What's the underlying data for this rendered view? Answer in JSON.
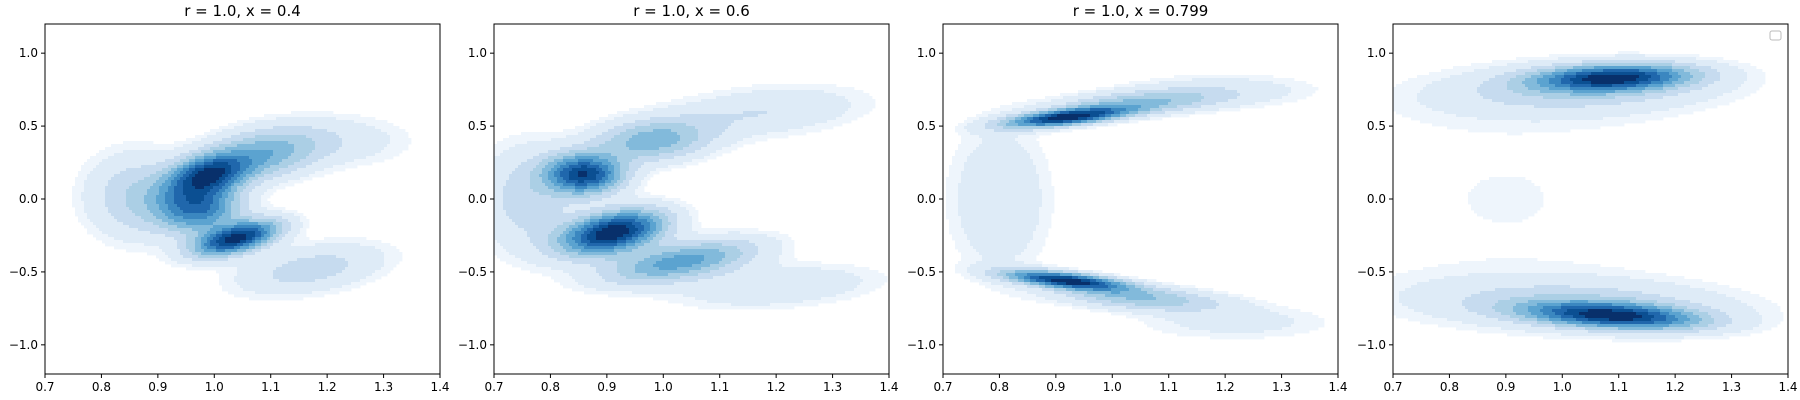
{
  "chart_data": [
    {
      "type": "contour",
      "title": "r = 1.0, x = 0.4",
      "xlim": [
        0.7,
        1.4
      ],
      "ylim": [
        -1.2,
        1.2
      ],
      "x_ticks": [
        "0.7",
        "0.8",
        "0.9",
        "1.0",
        "1.1",
        "1.2",
        "1.3",
        "1.4"
      ],
      "y_ticks": [
        "1.0",
        "0.5",
        "0.0",
        "−0.5",
        "−1.0"
      ],
      "grid": false,
      "colormap": "Blues",
      "levels": 10,
      "density_peaks": [
        {
          "x": 0.99,
          "y": 0.17,
          "sx": 0.045,
          "sy": 0.09,
          "rho": 0.3,
          "w": 0.8
        },
        {
          "x": 1.04,
          "y": -0.27,
          "sx": 0.05,
          "sy": 0.08,
          "rho": 0.55,
          "w": 1.0
        },
        {
          "x": 0.97,
          "y": -0.05,
          "sx": 0.05,
          "sy": 0.12,
          "rho": 0.0,
          "w": 0.75
        },
        {
          "x": 1.08,
          "y": 0.3,
          "sx": 0.07,
          "sy": 0.12,
          "rho": 0.3,
          "w": 0.45
        },
        {
          "x": 1.17,
          "y": -0.48,
          "sx": 0.09,
          "sy": 0.12,
          "rho": 0.4,
          "w": 0.22
        },
        {
          "x": 1.22,
          "y": 0.4,
          "sx": 0.09,
          "sy": 0.12,
          "rho": 0.0,
          "w": 0.12
        },
        {
          "x": 0.86,
          "y": 0.02,
          "sx": 0.06,
          "sy": 0.2,
          "rho": 0.0,
          "w": 0.25
        }
      ]
    },
    {
      "type": "contour",
      "title": "r = 1.0, x = 0.6",
      "xlim": [
        0.7,
        1.4
      ],
      "ylim": [
        -1.2,
        1.2
      ],
      "x_ticks": [
        "0.7",
        "0.8",
        "0.9",
        "1.0",
        "1.1",
        "1.2",
        "1.3",
        "1.4"
      ],
      "y_ticks": [
        "1.0",
        "0.5",
        "0.0",
        "−0.5",
        "−1.0"
      ],
      "grid": false,
      "colormap": "Blues",
      "levels": 10,
      "density_peaks": [
        {
          "x": 0.86,
          "y": 0.17,
          "sx": 0.045,
          "sy": 0.09,
          "rho": 0.0,
          "w": 0.85
        },
        {
          "x": 0.91,
          "y": -0.23,
          "sx": 0.06,
          "sy": 0.1,
          "rho": 0.4,
          "w": 1.0
        },
        {
          "x": 0.98,
          "y": 0.4,
          "sx": 0.07,
          "sy": 0.1,
          "rho": 0.2,
          "w": 0.4
        },
        {
          "x": 1.03,
          "y": -0.43,
          "sx": 0.09,
          "sy": 0.1,
          "rho": 0.55,
          "w": 0.5
        },
        {
          "x": 1.18,
          "y": 0.6,
          "sx": 0.12,
          "sy": 0.12,
          "rho": 0.3,
          "w": 0.15
        },
        {
          "x": 1.2,
          "y": -0.6,
          "sx": 0.12,
          "sy": 0.1,
          "rho": 0.3,
          "w": 0.15
        },
        {
          "x": 0.76,
          "y": 0.0,
          "sx": 0.06,
          "sy": 0.25,
          "rho": 0.0,
          "w": 0.2
        }
      ]
    },
    {
      "type": "contour",
      "title": "r = 1.0, x = 0.799",
      "xlim": [
        0.7,
        1.4
      ],
      "ylim": [
        -1.2,
        1.2
      ],
      "x_ticks": [
        "0.7",
        "0.8",
        "0.9",
        "1.0",
        "1.1",
        "1.2",
        "1.3",
        "1.4"
      ],
      "y_ticks": [
        "1.0",
        "0.5",
        "0.0",
        "−0.5",
        "−1.0"
      ],
      "grid": false,
      "colormap": "Blues",
      "levels": 10,
      "density_peaks": [
        {
          "x": 0.92,
          "y": 0.56,
          "sx": 0.07,
          "sy": 0.045,
          "rho": 0.6,
          "w": 1.0
        },
        {
          "x": 0.92,
          "y": -0.56,
          "sx": 0.07,
          "sy": 0.045,
          "rho": -0.6,
          "w": 1.0
        },
        {
          "x": 1.05,
          "y": 0.66,
          "sx": 0.1,
          "sy": 0.06,
          "rho": 0.4,
          "w": 0.35
        },
        {
          "x": 1.05,
          "y": -0.68,
          "sx": 0.1,
          "sy": 0.06,
          "rho": -0.4,
          "w": 0.35
        },
        {
          "x": 0.8,
          "y": 0.0,
          "sx": 0.06,
          "sy": 0.35,
          "rho": 0.0,
          "w": 0.15
        },
        {
          "x": 1.2,
          "y": 0.75,
          "sx": 0.12,
          "sy": 0.08,
          "rho": 0.0,
          "w": 0.1
        },
        {
          "x": 1.22,
          "y": -0.85,
          "sx": 0.12,
          "sy": 0.08,
          "rho": 0.0,
          "w": 0.1
        }
      ]
    },
    {
      "type": "contour",
      "title": "",
      "xlim": [
        0.7,
        1.4
      ],
      "ylim": [
        -1.2,
        1.2
      ],
      "x_ticks": [
        "0.7",
        "0.8",
        "0.9",
        "1.0",
        "1.1",
        "1.2",
        "1.3",
        "1.4"
      ],
      "y_ticks": [
        "1.0",
        "0.5",
        "0.0",
        "−0.5",
        "−1.0"
      ],
      "grid": false,
      "colormap": "Blues",
      "levels": 10,
      "legend": {
        "placement": "top-right",
        "entries": []
      },
      "density_peaks": [
        {
          "x": 1.09,
          "y": 0.83,
          "sx": 0.09,
          "sy": 0.06,
          "rho": 0.2,
          "w": 1.0
        },
        {
          "x": 1.09,
          "y": -0.8,
          "sx": 0.1,
          "sy": 0.06,
          "rho": -0.35,
          "w": 1.0
        },
        {
          "x": 1.03,
          "y": 0.75,
          "sx": 0.17,
          "sy": 0.12,
          "rho": 0.2,
          "w": 0.25
        },
        {
          "x": 1.03,
          "y": -0.72,
          "sx": 0.19,
          "sy": 0.12,
          "rho": -0.2,
          "w": 0.25
        },
        {
          "x": 0.9,
          "y": 0.0,
          "sx": 0.25,
          "sy": 0.6,
          "rho": 0.0,
          "w": 0.05
        }
      ]
    }
  ]
}
